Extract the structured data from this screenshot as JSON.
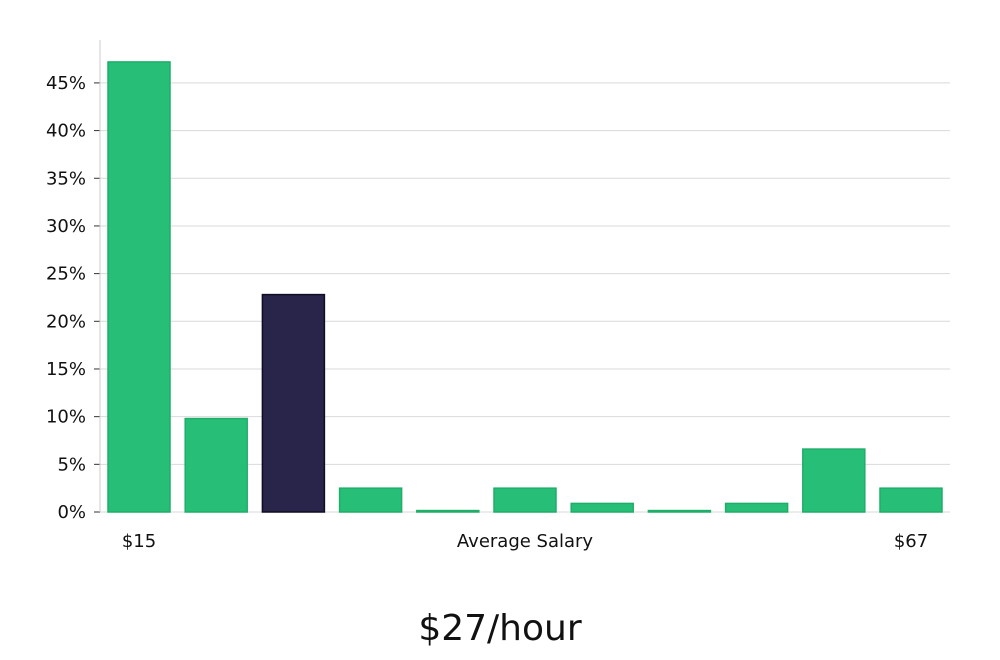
{
  "chart_data": {
    "type": "bar",
    "categories": [
      "",
      "",
      "",
      "",
      "",
      "",
      "",
      "",
      "",
      "",
      ""
    ],
    "values": [
      47.2,
      9.8,
      22.8,
      2.5,
      0.15,
      2.5,
      0.9,
      0.15,
      0.9,
      6.6,
      2.5
    ],
    "highlight_index": 2,
    "xlabel": "Average Salary",
    "x_start_label": "$15",
    "x_end_label": "$67",
    "ylabel": "",
    "ylim": [
      0,
      49.5
    ],
    "yticks": [
      0,
      5,
      10,
      15,
      20,
      25,
      30,
      35,
      40,
      45
    ],
    "ytick_format": "percent",
    "grid": true,
    "colors": {
      "bar": "#27bf77",
      "bar_edge": "#1fae69",
      "highlight": "#28244a",
      "highlight_edge": "#0f0d24",
      "grid": "#d9d9d9",
      "axis": "#cccccc"
    }
  },
  "summary": {
    "headline": "$27/hour"
  }
}
